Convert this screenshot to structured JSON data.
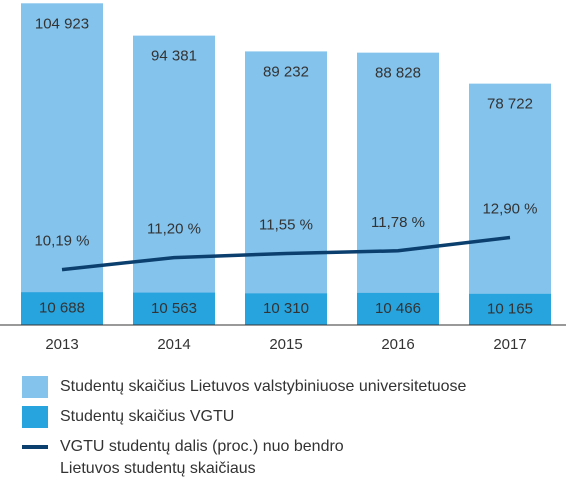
{
  "chart_data": {
    "type": "bar",
    "categories": [
      "2013",
      "2014",
      "2015",
      "2016",
      "2017"
    ],
    "ylim": [
      0,
      106000
    ],
    "y2lim": [
      5.5,
      33
    ],
    "series": [
      {
        "name": "Studentų skaičius Lietuvos valstybiniuose universitetuose",
        "type": "bar",
        "color": "#84c3ec",
        "values": [
          104923,
          94381,
          89232,
          88828,
          78722
        ],
        "value_labels": [
          "104 923",
          "94 381",
          "89 232",
          "88 828",
          "78 722"
        ]
      },
      {
        "name": "Studentų skaičius VGTU",
        "type": "bar",
        "color": "#27a3dd",
        "values": [
          10688,
          10563,
          10310,
          10466,
          10165
        ],
        "value_labels": [
          "10 688",
          "10 563",
          "10 310",
          "10 466",
          "10 165"
        ]
      },
      {
        "name": "VGTU studentų dalis (proc.) nuo bendro Lietuvos studentų skaičiaus",
        "type": "line",
        "axis": "y2",
        "color": "#0b3f6e",
        "values": [
          10.19,
          11.2,
          11.55,
          11.78,
          12.9
        ],
        "value_labels": [
          "10,19 %",
          "11,20 %",
          "11,55 %",
          "11,78 %",
          "12,90 %"
        ]
      }
    ]
  }
}
